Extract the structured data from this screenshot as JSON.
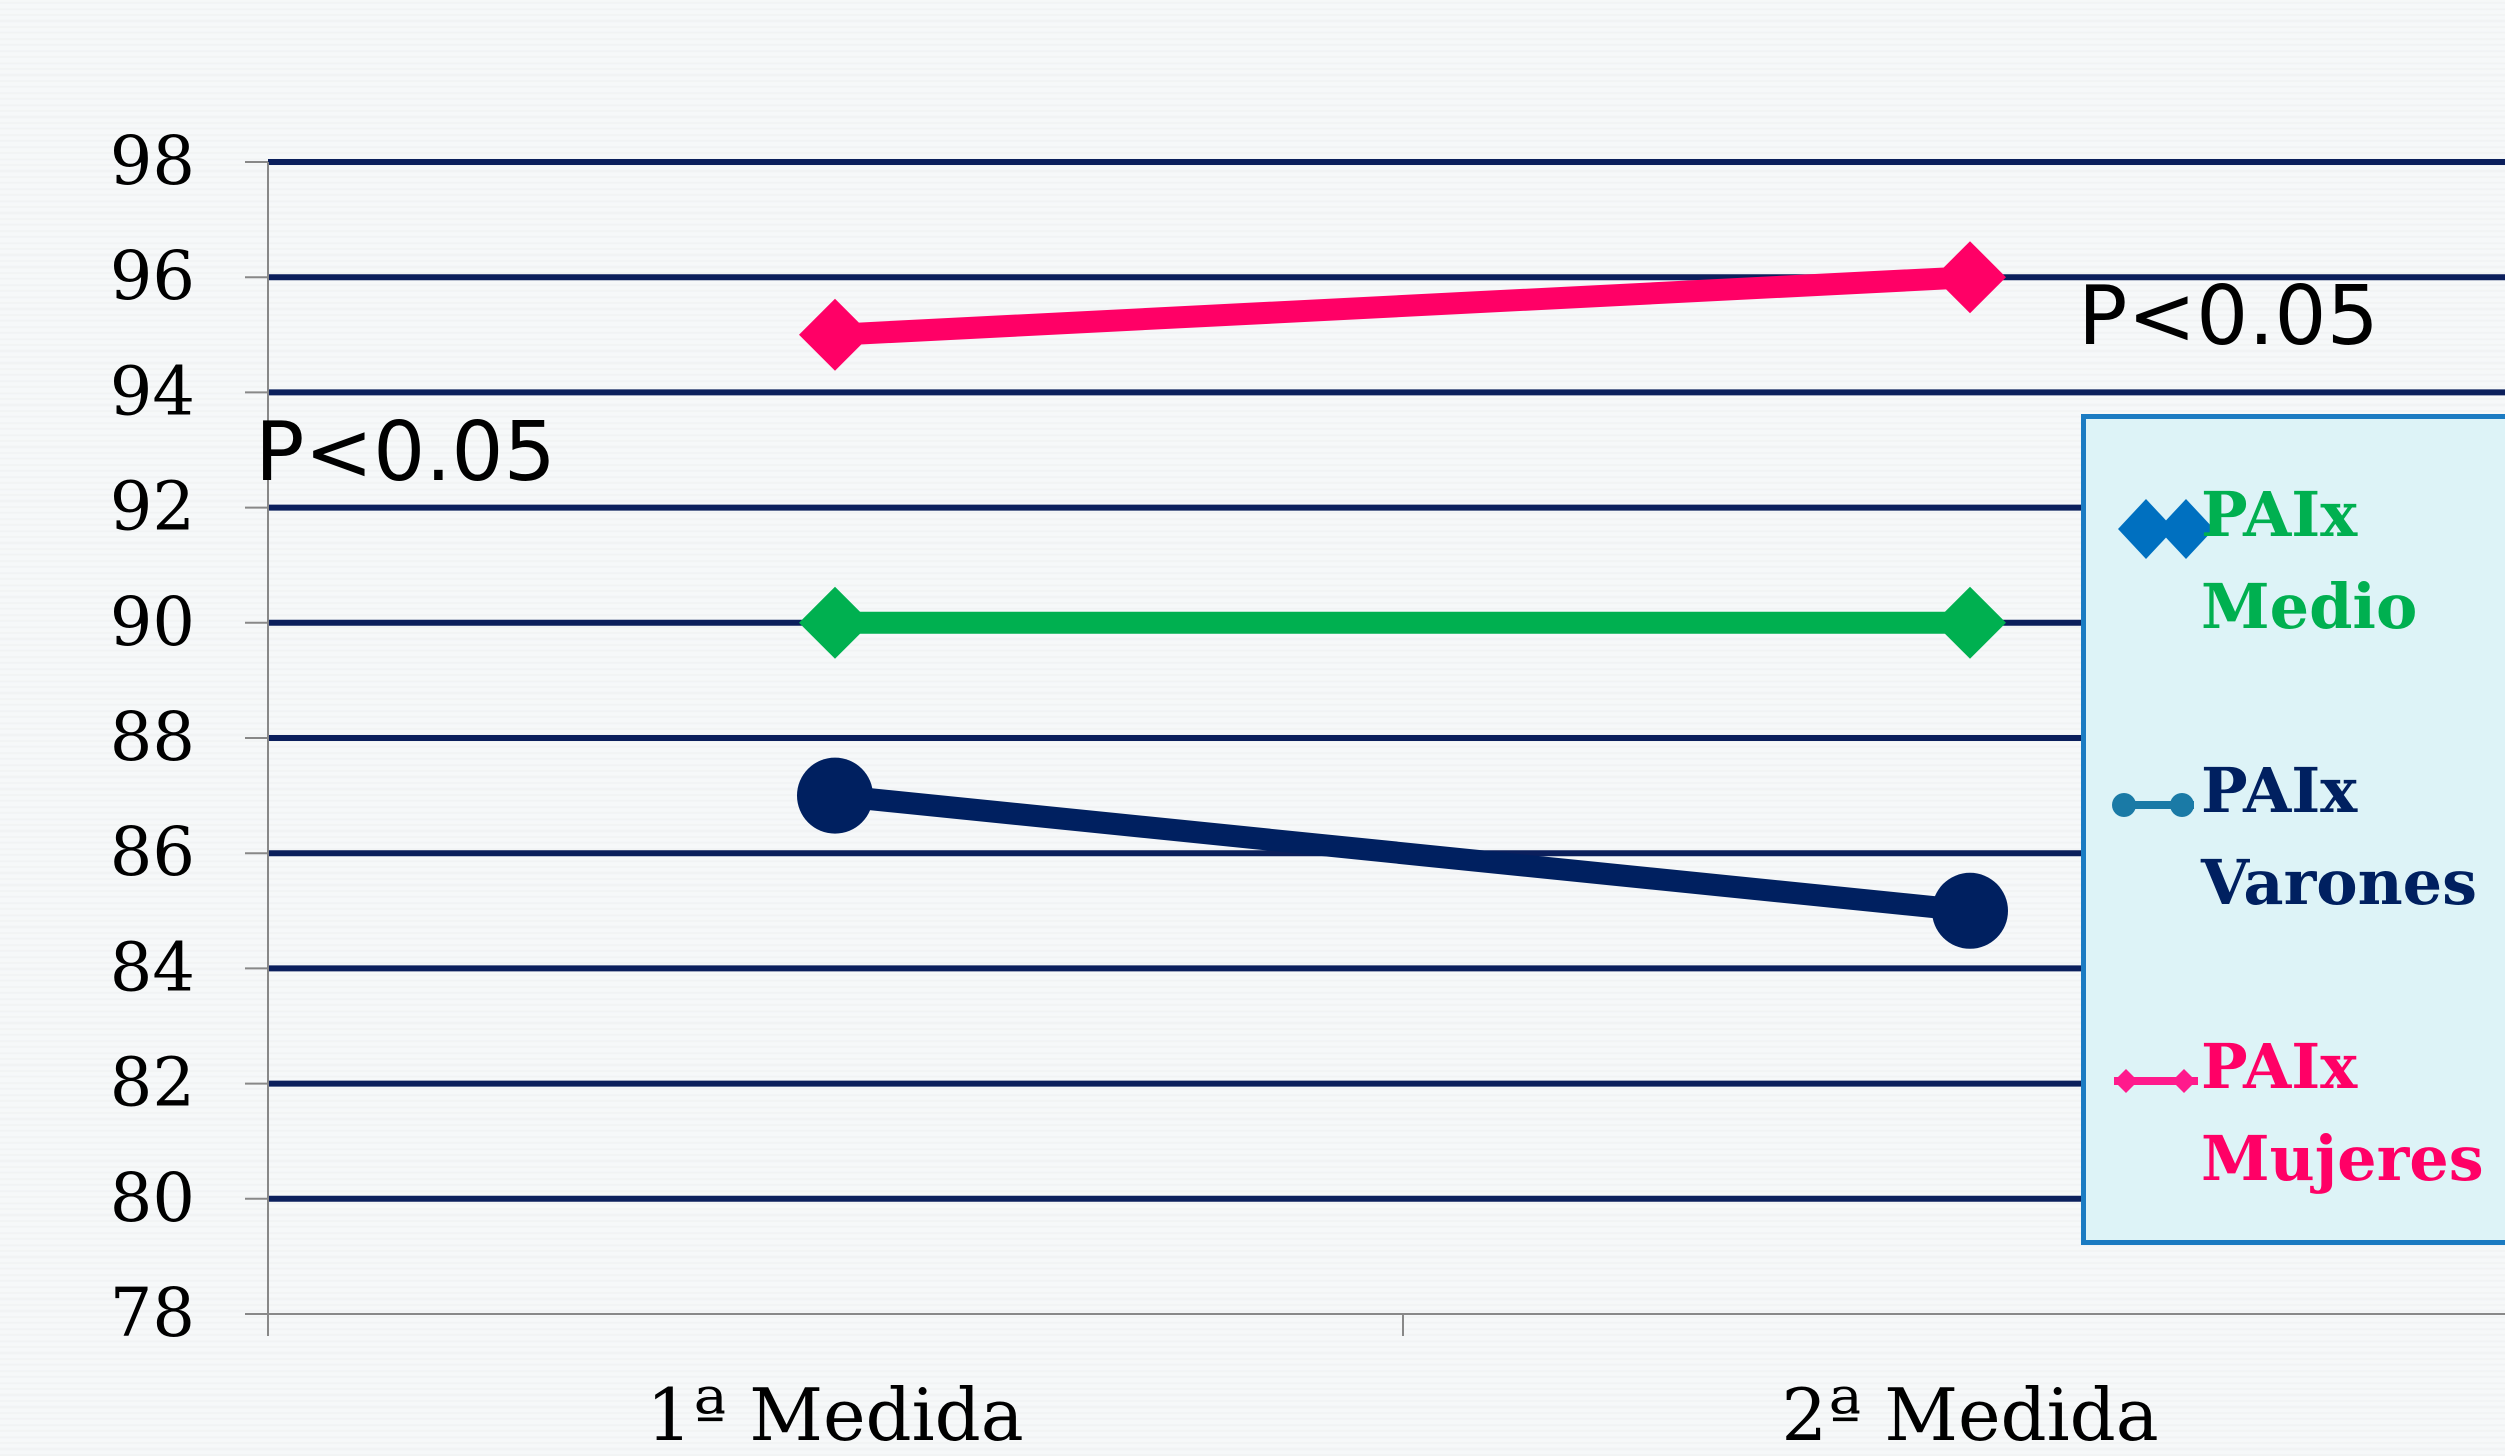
{
  "chart_data": {
    "type": "line",
    "categories": [
      "1ª Medida",
      "2ª Medida"
    ],
    "ylim": [
      78,
      98
    ],
    "yticks": [
      78,
      80,
      82,
      84,
      86,
      88,
      90,
      92,
      94,
      96,
      98
    ],
    "yticklabels": [
      "78",
      "80",
      "82",
      "84",
      "86",
      "88",
      "90",
      "92",
      "94",
      "96",
      "98"
    ],
    "grid": true,
    "legend_position": "right",
    "series": [
      {
        "name": "PAIx Medio",
        "values": [
          90,
          90
        ],
        "color": "#00b050",
        "marker": "diamond",
        "legend_color": "#00b050",
        "legend_marker_color": "#0070c0"
      },
      {
        "name": "PAIx Varones",
        "values": [
          87,
          85
        ],
        "color": "#002060",
        "marker": "circle",
        "legend_color": "#002060",
        "legend_marker_color": "#1a7aa6"
      },
      {
        "name": "PAIx Mujeres",
        "values": [
          95,
          96
        ],
        "color": "#ff0066",
        "marker": "diamond",
        "legend_color": "#ff0066",
        "legend_marker_color": "#ff1a8c"
      }
    ],
    "annotations": [
      "P<0.05",
      "P<0.05"
    ]
  },
  "legend": {
    "items": [
      {
        "line1": "PAIx",
        "line2": "Medio"
      },
      {
        "line1": "PAIx",
        "line2": "Varones"
      },
      {
        "line1": "PAIx",
        "line2": "Mujeres"
      }
    ]
  }
}
